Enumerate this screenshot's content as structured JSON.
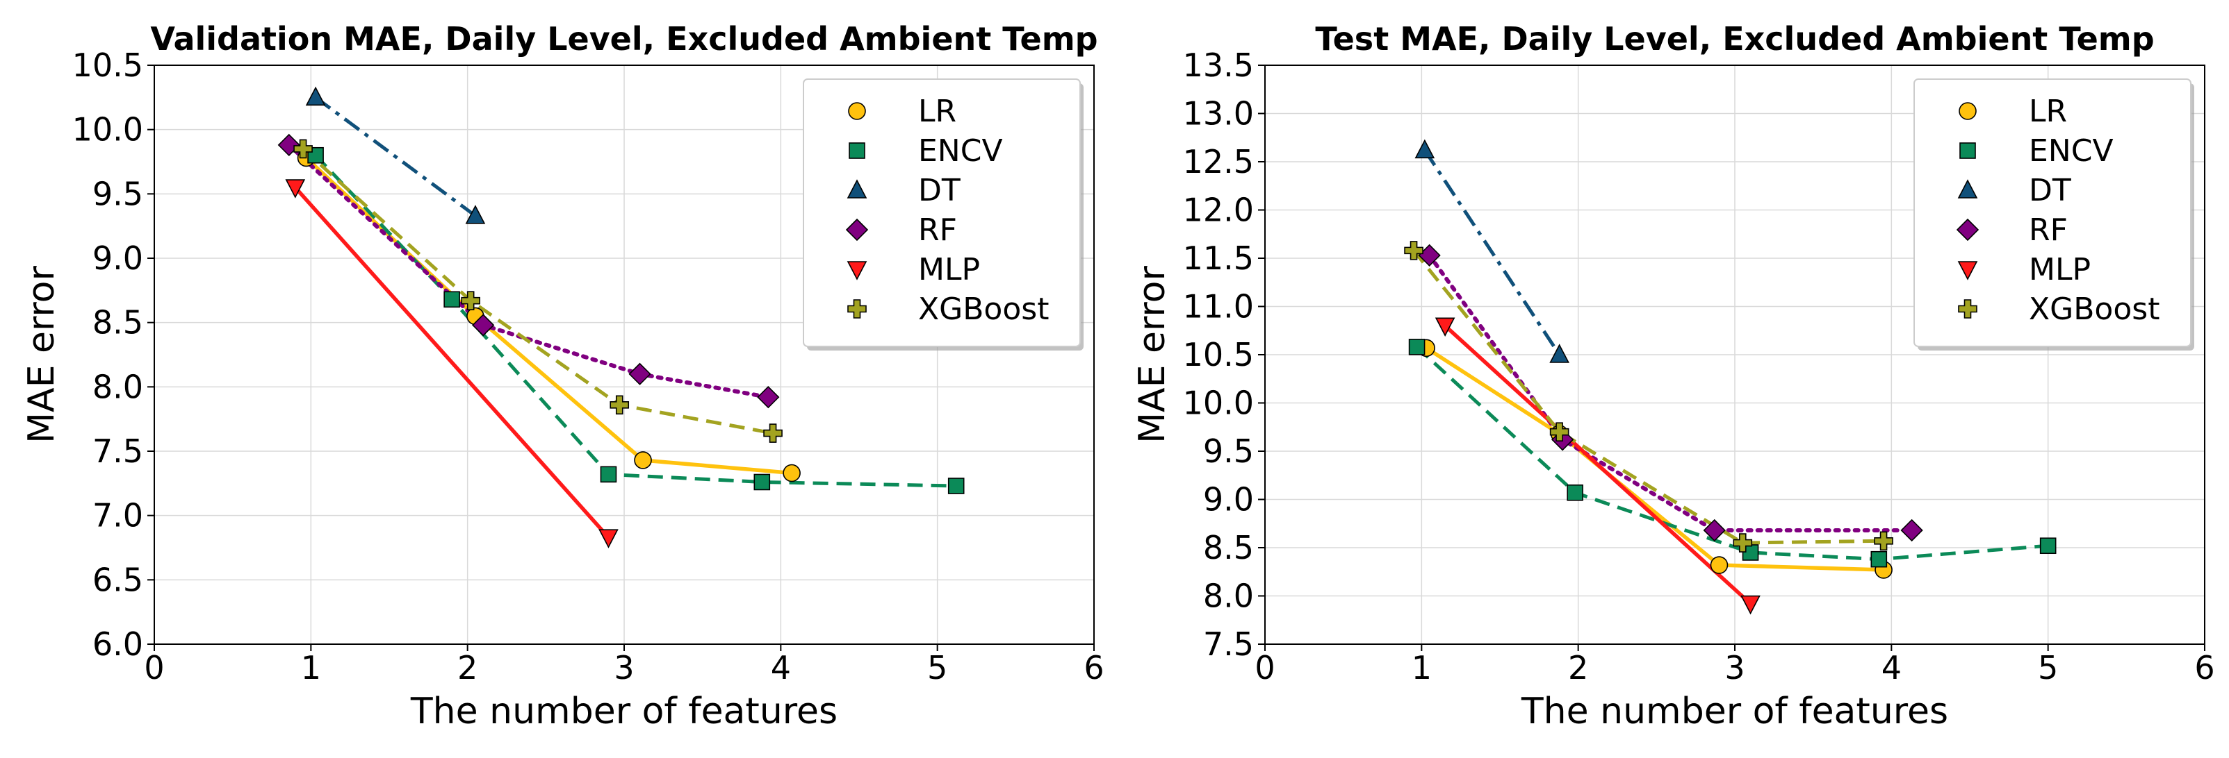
{
  "chart_data": [
    {
      "type": "line",
      "title": "Validation MAE, Daily Level, Excluded Ambient Temp",
      "xlabel": "The number of features",
      "ylabel": "MAE error",
      "xlim": [
        0,
        6
      ],
      "ylim": [
        6.0,
        10.5
      ],
      "xticks": [
        0,
        1,
        2,
        3,
        4,
        5,
        6
      ],
      "yticks": [
        6.0,
        6.5,
        7.0,
        7.5,
        8.0,
        8.5,
        9.0,
        9.5,
        10.0,
        10.5
      ],
      "grid": true,
      "legend_position": "upper right",
      "series": [
        {
          "name": "LR",
          "x": [
            0.97,
            2.05,
            3.12,
            4.07
          ],
          "y": [
            9.78,
            8.55,
            7.43,
            7.33
          ]
        },
        {
          "name": "ENCV",
          "x": [
            1.03,
            1.9,
            2.9,
            3.88,
            5.12
          ],
          "y": [
            9.8,
            8.68,
            7.32,
            7.26,
            7.23
          ]
        },
        {
          "name": "DT",
          "x": [
            1.03,
            2.05
          ],
          "y": [
            10.25,
            9.33
          ]
        },
        {
          "name": "RF",
          "x": [
            0.86,
            2.1,
            3.1,
            3.92
          ],
          "y": [
            9.88,
            8.48,
            8.1,
            7.92
          ]
        },
        {
          "name": "MLP",
          "x": [
            0.9,
            2.9
          ],
          "y": [
            9.55,
            6.83
          ]
        },
        {
          "name": "XGBoost",
          "x": [
            0.95,
            2.02,
            2.97,
            3.95
          ],
          "y": [
            9.85,
            8.67,
            7.86,
            7.64
          ]
        }
      ]
    },
    {
      "type": "line",
      "title": "Test MAE, Daily Level, Excluded Ambient Temp",
      "xlabel": "The number of features",
      "ylabel": "MAE error",
      "xlim": [
        0,
        6
      ],
      "ylim": [
        7.5,
        13.5
      ],
      "xticks": [
        0,
        1,
        2,
        3,
        4,
        5,
        6
      ],
      "yticks": [
        7.5,
        8.0,
        8.5,
        9.0,
        9.5,
        10.0,
        10.5,
        11.0,
        11.5,
        12.0,
        12.5,
        13.0,
        13.5
      ],
      "grid": true,
      "legend_position": "upper right",
      "series": [
        {
          "name": "LR",
          "x": [
            1.03,
            1.88,
            2.9,
            3.95
          ],
          "y": [
            10.57,
            9.68,
            8.32,
            8.27
          ]
        },
        {
          "name": "ENCV",
          "x": [
            0.97,
            1.98,
            3.1,
            3.92,
            5.0
          ],
          "y": [
            10.58,
            9.07,
            8.45,
            8.38,
            8.52
          ]
        },
        {
          "name": "DT",
          "x": [
            1.02,
            1.88
          ],
          "y": [
            12.62,
            10.5
          ]
        },
        {
          "name": "RF",
          "x": [
            1.05,
            1.9,
            2.87,
            4.13
          ],
          "y": [
            11.53,
            9.62,
            8.68,
            8.68
          ]
        },
        {
          "name": "MLP",
          "x": [
            1.15,
            3.1
          ],
          "y": [
            10.8,
            7.92
          ]
        },
        {
          "name": "XGBoost",
          "x": [
            0.95,
            1.88,
            3.05,
            3.95
          ],
          "y": [
            11.58,
            9.7,
            8.55,
            8.57
          ]
        }
      ]
    }
  ],
  "styles": {
    "LR": {
      "color": "#ffc20e",
      "marker": "circle",
      "dash": "solid"
    },
    "ENCV": {
      "color": "#0b8a58",
      "marker": "square",
      "dash": "dashed"
    },
    "DT": {
      "color": "#10507a",
      "marker": "triangle-up",
      "dash": "dashdot"
    },
    "RF": {
      "color": "#800080",
      "marker": "diamond",
      "dash": "dotted"
    },
    "MLP": {
      "color": "#ff1a1a",
      "marker": "triangle-down",
      "dash": "solid"
    },
    "XGBoost": {
      "color": "#a3a320",
      "marker": "plus",
      "dash": "dashed"
    }
  }
}
